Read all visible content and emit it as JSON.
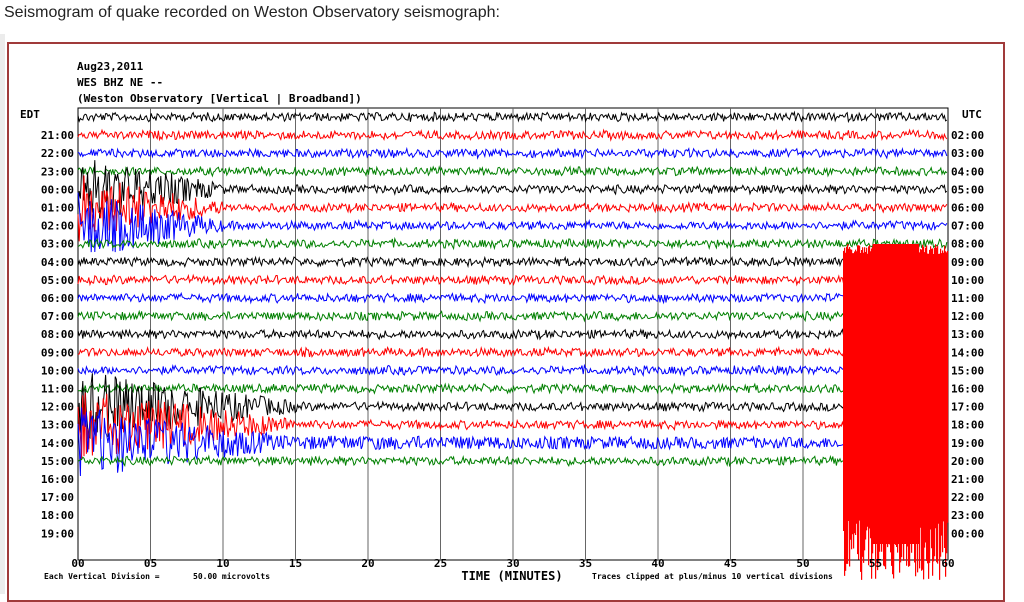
{
  "caption": "Seismogram of quake recorded on Weston Observatory seismograph:",
  "chart_data": {
    "type": "line",
    "header": [
      "Aug23,2011",
      "WES BHZ NE --",
      "(Weston Observatory [Vertical | Broadband])"
    ],
    "left_axis_title": "EDT",
    "right_axis_title": "UTC",
    "xlabel": "TIME (MINUTES)",
    "xlim": [
      0,
      60
    ],
    "x_ticks": [
      "00",
      "05",
      "10",
      "15",
      "20",
      "25",
      "30",
      "35",
      "40",
      "45",
      "50",
      "55",
      "60"
    ],
    "left_labels": [
      "",
      "21:00",
      "22:00",
      "23:00",
      "00:00",
      "01:00",
      "02:00",
      "03:00",
      "04:00",
      "05:00",
      "06:00",
      "07:00",
      "08:00",
      "09:00",
      "10:00",
      "11:00",
      "12:00",
      "13:00",
      "14:00",
      "15:00",
      "16:00",
      "17:00",
      "18:00",
      "19:00"
    ],
    "right_labels": [
      "",
      "02:00",
      "03:00",
      "04:00",
      "05:00",
      "06:00",
      "07:00",
      "08:00",
      "09:00",
      "10:00",
      "11:00",
      "12:00",
      "13:00",
      "14:00",
      "15:00",
      "16:00",
      "17:00",
      "18:00",
      "19:00",
      "20:00",
      "21:00",
      "22:00",
      "23:00",
      "00:00"
    ],
    "trace_colors": [
      "#000000",
      "#ff0000",
      "#0000ff",
      "#008000"
    ],
    "trace_count": 20,
    "quake": {
      "trace_index": 19,
      "start_minute": 52.8
    },
    "footer_left": "Each Vertical Division =",
    "footer_value": "50.00 microvolts",
    "footer_right": "Traces clipped at plus/minus 10 vertical divisions"
  }
}
